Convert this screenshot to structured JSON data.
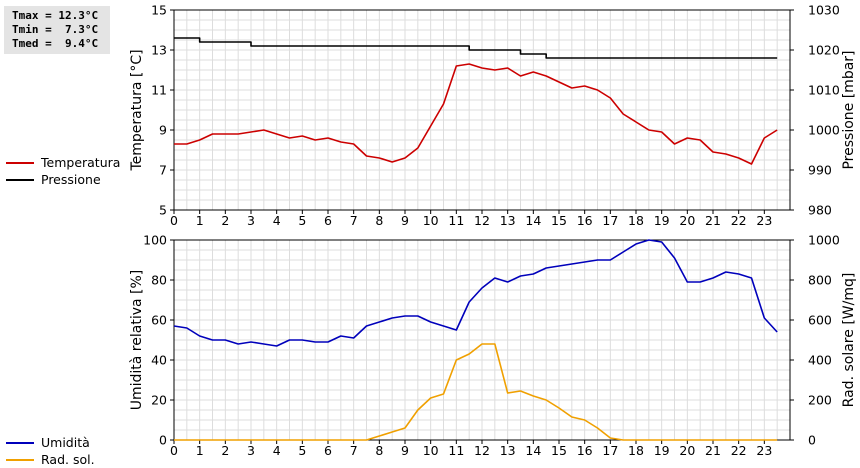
{
  "stats": {
    "lines": [
      "Tmax = 12.3°C",
      "Tmin =  7.3°C",
      "Tmed =  9.4°C"
    ]
  },
  "legend_top": [
    {
      "label": "Temperatura",
      "color": "#cc0000"
    },
    {
      "label": "Pressione",
      "color": "#000000"
    }
  ],
  "legend_bottom": [
    {
      "label": "Umidità",
      "color": "#0000bb"
    },
    {
      "label": "Rad. sol.",
      "color": "#f0a000"
    }
  ],
  "chart_data": [
    {
      "type": "line",
      "ylabel": "Temperatura [°C]",
      "ylabel_right": "Pressione [mbar]",
      "xlim": [
        0,
        24
      ],
      "ylim": [
        5,
        15
      ],
      "ylim_right": [
        980,
        1030
      ],
      "x_ticks": [
        0,
        1,
        2,
        3,
        4,
        5,
        6,
        7,
        8,
        9,
        10,
        11,
        12,
        13,
        14,
        15,
        16,
        17,
        18,
        19,
        20,
        21,
        22,
        23
      ],
      "y_ticks": [
        5,
        7,
        9,
        11,
        13,
        15
      ],
      "y_ticks_right": [
        980,
        990,
        1000,
        1010,
        1020,
        1030
      ],
      "grid": true,
      "series": [
        {
          "name": "Temperatura",
          "axis": "left",
          "color": "#cc0000",
          "x": [
            0,
            0.5,
            1,
            1.5,
            2,
            2.5,
            3,
            3.5,
            4,
            4.5,
            5,
            5.5,
            6,
            6.5,
            7,
            7.5,
            8,
            8.5,
            9,
            9.5,
            10,
            10.5,
            11,
            11.5,
            12,
            12.5,
            13,
            13.5,
            14,
            14.5,
            15,
            15.5,
            16,
            16.5,
            17,
            17.5,
            18,
            18.5,
            19,
            19.5,
            20,
            20.5,
            21,
            21.5,
            22,
            22.5,
            23,
            23.5
          ],
          "y": [
            8.3,
            8.3,
            8.5,
            8.8,
            8.8,
            8.8,
            8.9,
            9.0,
            8.8,
            8.6,
            8.7,
            8.5,
            8.6,
            8.4,
            8.3,
            7.7,
            7.6,
            7.4,
            7.6,
            8.1,
            9.2,
            10.3,
            12.2,
            12.3,
            12.1,
            12.0,
            12.1,
            11.7,
            11.9,
            11.7,
            11.4,
            11.1,
            11.2,
            11.0,
            10.6,
            9.8,
            9.4,
            9.0,
            8.9,
            8.3,
            8.6,
            8.5,
            7.9,
            7.8,
            7.6,
            7.3,
            8.6,
            9.0
          ]
        },
        {
          "name": "Pressione",
          "axis": "right",
          "color": "#000000",
          "x": [
            0,
            0.5,
            1,
            1.5,
            2,
            2.5,
            3,
            3.5,
            4,
            4.5,
            5,
            5.5,
            6,
            6.5,
            7,
            7.5,
            8,
            8.5,
            9,
            9.5,
            10,
            10.5,
            11,
            11.5,
            12,
            12.5,
            13,
            13.5,
            14,
            14.5,
            15,
            15.5,
            16,
            16.5,
            17,
            17.5,
            18,
            18.5,
            19,
            19.5,
            20,
            20.5,
            21,
            21.5,
            22,
            22.5,
            23,
            23.5
          ],
          "y": [
            1023,
            1023,
            1022,
            1022,
            1022,
            1022,
            1021,
            1021,
            1021,
            1021,
            1021,
            1021,
            1021,
            1021,
            1021,
            1021,
            1021,
            1021,
            1021,
            1021,
            1021,
            1021,
            1021,
            1020,
            1020,
            1020,
            1020,
            1019,
            1019,
            1018,
            1018,
            1018,
            1018,
            1018,
            1018,
            1018,
            1018,
            1018,
            1018,
            1018,
            1018,
            1018,
            1018,
            1018,
            1018,
            1018,
            1018,
            1018
          ]
        }
      ]
    },
    {
      "type": "line",
      "ylabel": "Umidità relativa [%]",
      "ylabel_right": "Rad. solare [W/mq]",
      "xlim": [
        0,
        24
      ],
      "ylim": [
        0,
        100
      ],
      "ylim_right": [
        0,
        1000
      ],
      "x_ticks": [
        0,
        1,
        2,
        3,
        4,
        5,
        6,
        7,
        8,
        9,
        10,
        11,
        12,
        13,
        14,
        15,
        16,
        17,
        18,
        19,
        20,
        21,
        22,
        23
      ],
      "y_ticks": [
        0,
        20,
        40,
        60,
        80,
        100
      ],
      "y_ticks_right": [
        0,
        200,
        400,
        600,
        800,
        1000
      ],
      "grid": true,
      "series": [
        {
          "name": "Umidità",
          "axis": "left",
          "color": "#0000bb",
          "x": [
            0,
            0.5,
            1,
            1.5,
            2,
            2.5,
            3,
            3.5,
            4,
            4.5,
            5,
            5.5,
            6,
            6.5,
            7,
            7.5,
            8,
            8.5,
            9,
            9.5,
            10,
            10.5,
            11,
            11.5,
            12,
            12.5,
            13,
            13.5,
            14,
            14.5,
            15,
            15.5,
            16,
            16.5,
            17,
            17.5,
            18,
            18.5,
            19,
            19.5,
            20,
            20.5,
            21,
            21.5,
            22,
            22.5,
            23,
            23.5
          ],
          "y": [
            57,
            56,
            52,
            50,
            50,
            48,
            49,
            48,
            47,
            50,
            50,
            49,
            49,
            52,
            51,
            57,
            59,
            61,
            62,
            62,
            59,
            57,
            55,
            69,
            76,
            81,
            79,
            82,
            83,
            86,
            87,
            88,
            89,
            90,
            90,
            94,
            98,
            100,
            99,
            91,
            79,
            79,
            81,
            84,
            83,
            81,
            61,
            54
          ]
        },
        {
          "name": "Rad. sol.",
          "axis": "right",
          "color": "#f0a000",
          "x": [
            0,
            0.5,
            1,
            1.5,
            2,
            2.5,
            3,
            3.5,
            4,
            4.5,
            5,
            5.5,
            6,
            6.5,
            7,
            7.5,
            8,
            8.5,
            9,
            9.5,
            10,
            10.5,
            11,
            11.5,
            12,
            12.5,
            13,
            13.5,
            14,
            14.5,
            15,
            15.5,
            16,
            16.5,
            17,
            17.5,
            18,
            18.5,
            19,
            19.5,
            20,
            20.5,
            21,
            21.5,
            22,
            22.5,
            23,
            23.5
          ],
          "y": [
            0,
            0,
            0,
            0,
            0,
            0,
            0,
            0,
            0,
            0,
            0,
            0,
            0,
            0,
            0,
            0,
            20,
            40,
            60,
            150,
            210,
            230,
            400,
            430,
            480,
            480,
            235,
            245,
            220,
            200,
            160,
            115,
            100,
            60,
            10,
            0,
            0,
            0,
            0,
            0,
            0,
            0,
            0,
            0,
            0,
            0,
            0,
            0
          ]
        }
      ]
    }
  ]
}
